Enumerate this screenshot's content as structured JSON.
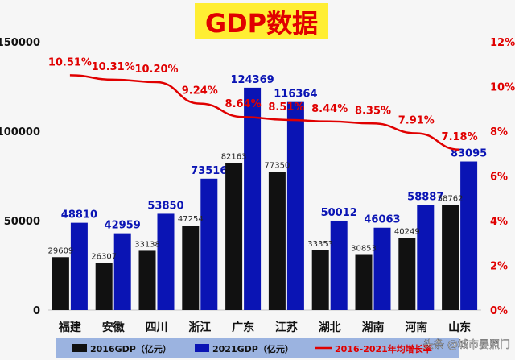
{
  "watermark": "头条 @城市晏照门",
  "colors": {
    "gdp2016": "#111111",
    "gdp2021": "#0a14b4",
    "growth_line": "#e00000",
    "title_bg": "#ffee33",
    "title_text": "#e00000",
    "left_axis_text": "#111111",
    "right_axis_text": "#e00000",
    "legend_bg": "#9bb3e0"
  },
  "chart_data": {
    "type": "bar",
    "title": "GDP数据",
    "categories": [
      "福建",
      "安徽",
      "四川",
      "浙江",
      "广东",
      "江苏",
      "湖北",
      "湖南",
      "河南",
      "山东"
    ],
    "series": [
      {
        "name": "2016GDP（亿元）",
        "type": "bar",
        "axis": "left",
        "values": [
          29609,
          26307,
          33138,
          47254,
          82163,
          77350,
          33353,
          30853,
          40249,
          58762
        ],
        "labels": [
          "29609",
          "26307",
          "33138",
          "47254",
          "82163",
          "77350",
          "33353",
          "30853",
          "40249",
          "58762"
        ]
      },
      {
        "name": "2021GDP（亿元）",
        "type": "bar",
        "axis": "left",
        "values": [
          48810,
          42959,
          53850,
          73516,
          124369,
          116364,
          50012,
          46063,
          58887,
          83095
        ],
        "labels": [
          "48810",
          "42959",
          "53850",
          "73516",
          "124369",
          "116364",
          "50012",
          "46063",
          "58887",
          "83095"
        ]
      },
      {
        "name": "2016-2021年均增长率",
        "type": "line",
        "axis": "right",
        "values": [
          10.51,
          10.31,
          10.2,
          9.24,
          8.64,
          8.51,
          8.44,
          8.35,
          7.91,
          7.18
        ],
        "labels": [
          "10.51%",
          "10.31%",
          "10.20%",
          "9.24%",
          "8.64%",
          "8.51%",
          "8.44%",
          "8.35%",
          "7.91%",
          "7.18%"
        ]
      }
    ],
    "y_left": {
      "min": 0,
      "max": 150000,
      "ticks": [
        0,
        50000,
        100000,
        150000
      ],
      "tick_labels": [
        "0",
        "50000",
        "100000",
        "150000"
      ]
    },
    "y_right": {
      "min": 0,
      "max": 12,
      "ticks": [
        0,
        2,
        4,
        6,
        8,
        10,
        12
      ],
      "tick_labels": [
        "0%",
        "2%",
        "4%",
        "6%",
        "8%",
        "10%",
        "12%"
      ]
    },
    "legend": "bottom",
    "grid": false
  }
}
